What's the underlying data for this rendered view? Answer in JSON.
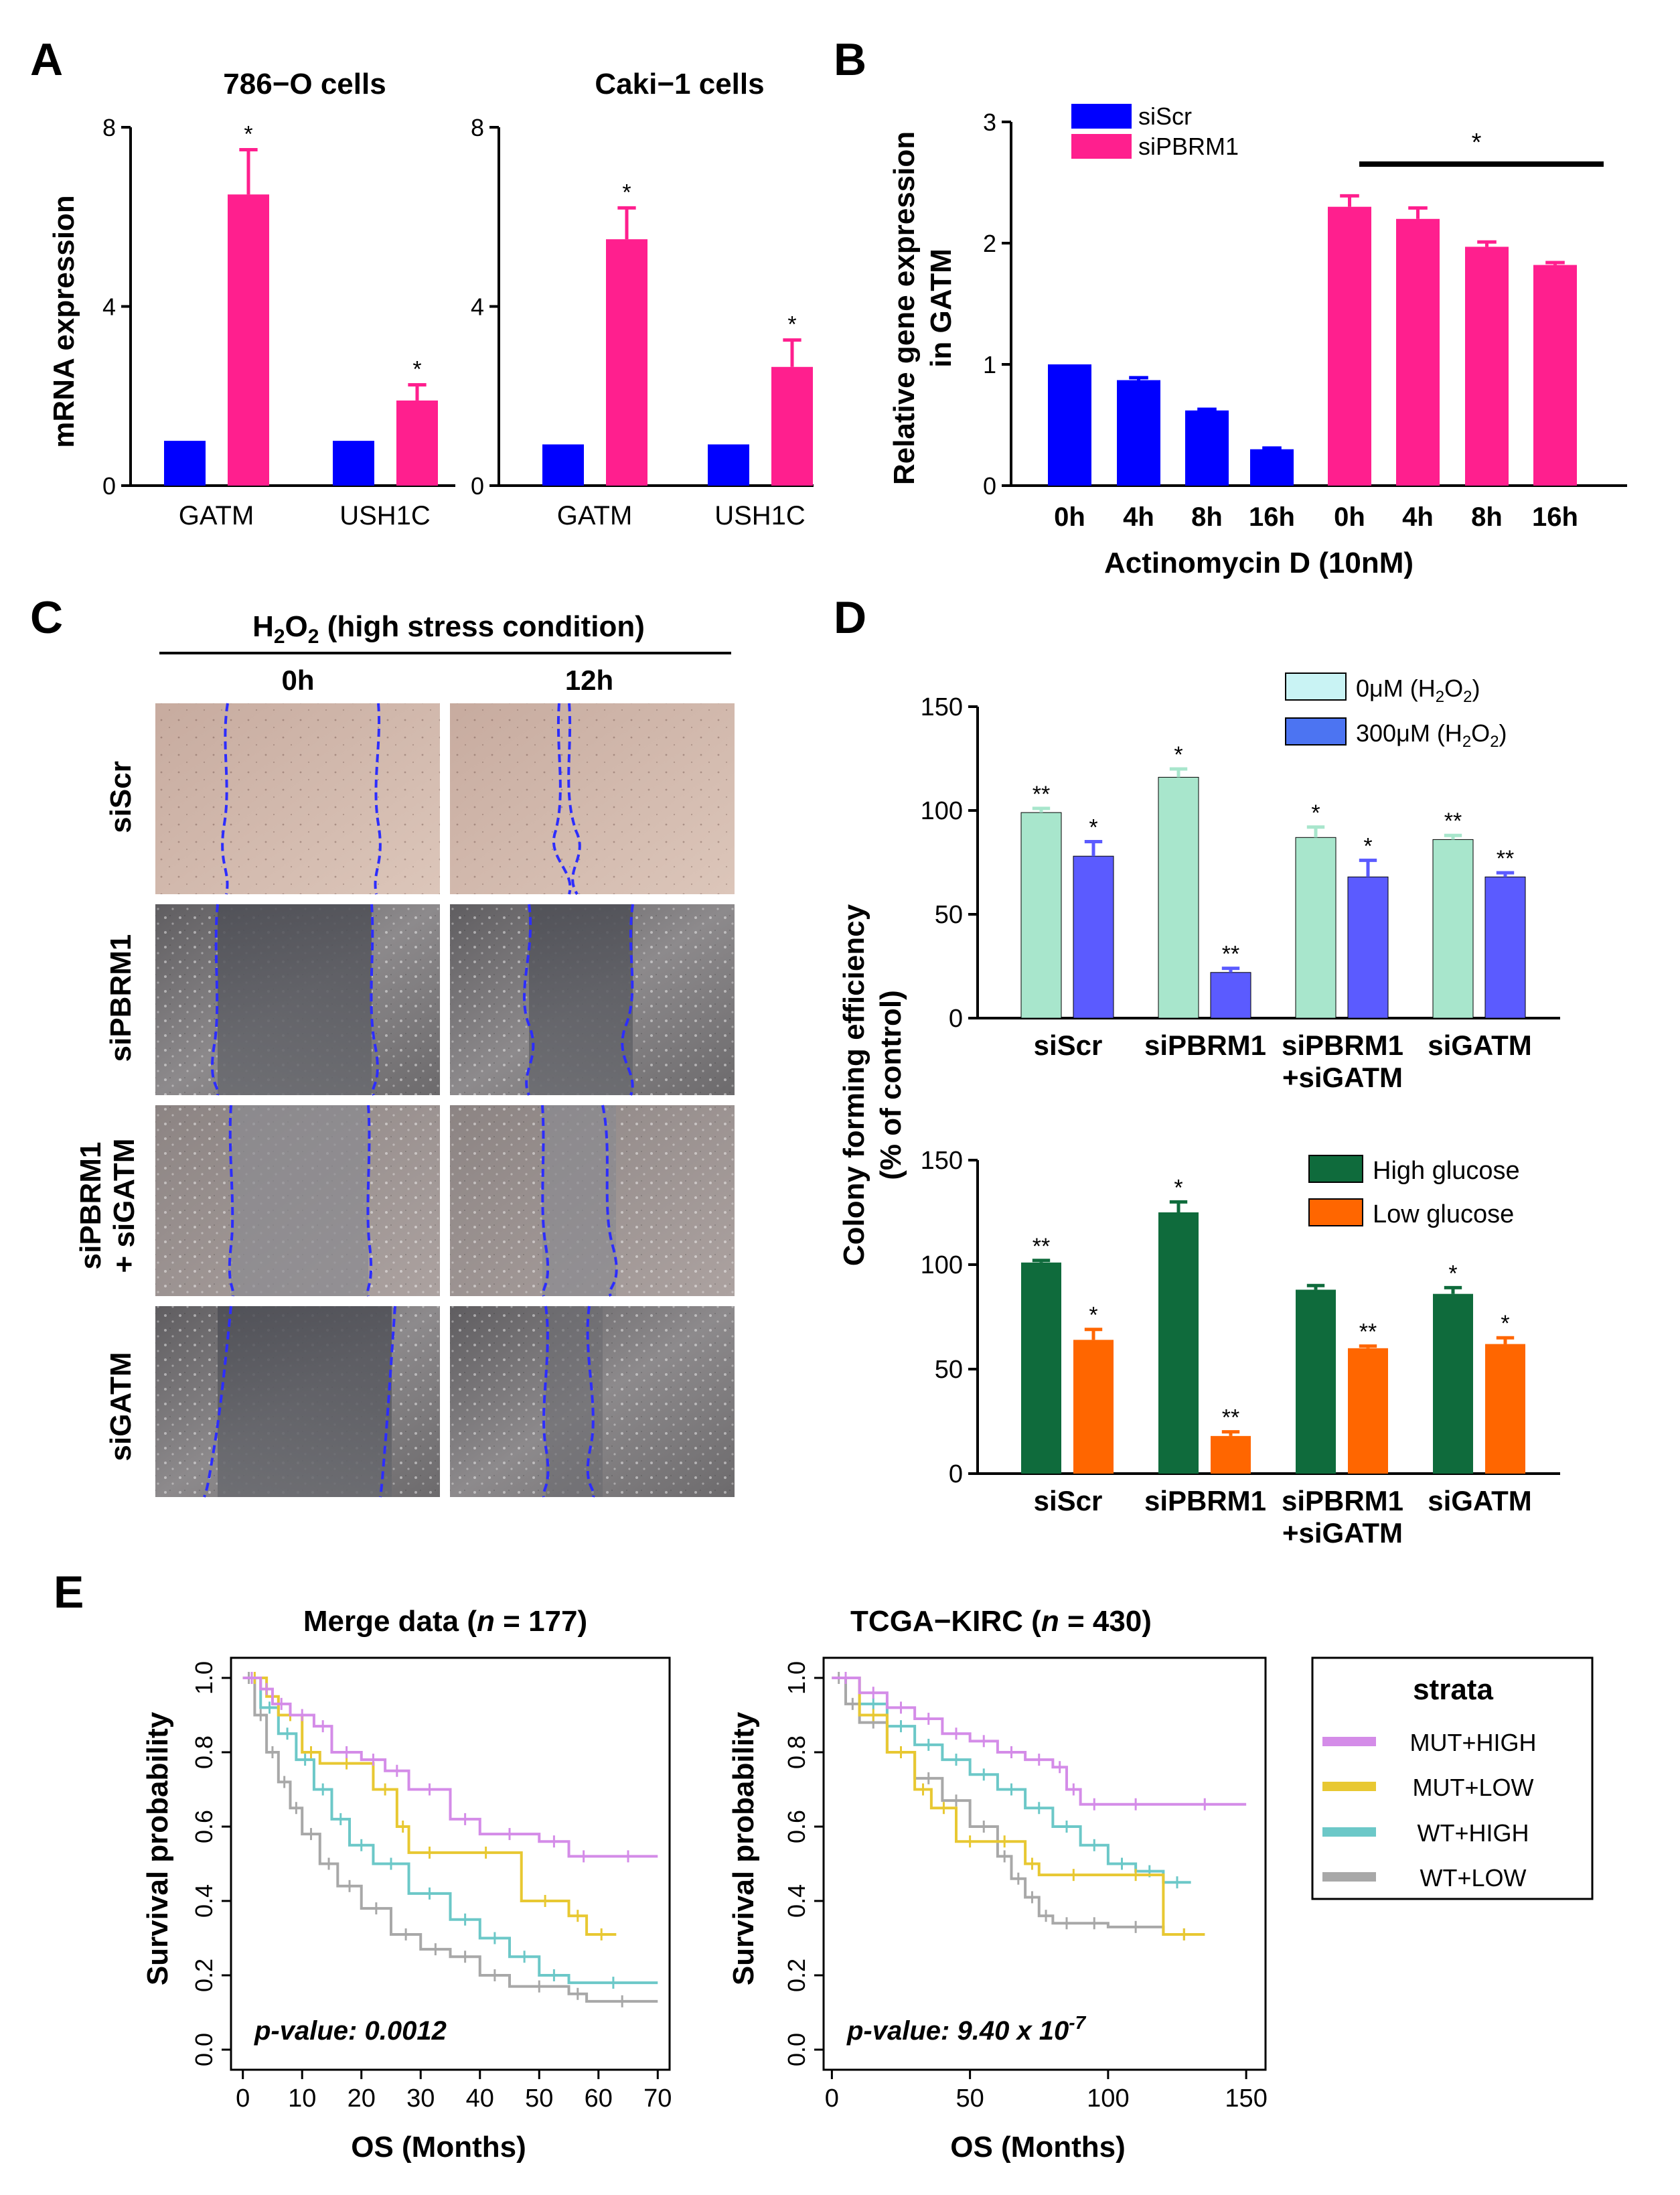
{
  "panel_labels": {
    "a": "A",
    "b": "B",
    "c": "C",
    "d": "D",
    "e": "E"
  },
  "colors": {
    "blue": "#0000ff",
    "pink": "#ff1f8e",
    "mint": "#a8e6cc",
    "periwinkle": "#5b5bff",
    "green": "#0f6b3c",
    "orange": "#ff6600",
    "mut_high": "#d48ce8",
    "mut_low": "#e8c832",
    "wt_high": "#6cc8c8",
    "wt_low": "#a8a8a8"
  },
  "panel_a": {
    "ylabel": "mRNA expression",
    "charts": [
      {
        "title": "786−O cells",
        "categories": [
          "GATM",
          "USH1C"
        ],
        "ylim": [
          0,
          8
        ],
        "yticks": [
          "0",
          "4",
          "8"
        ],
        "series": [
          {
            "name": "siScr",
            "values": [
              1.0,
              1.0
            ],
            "err": [
              0,
              0
            ]
          },
          {
            "name": "siPBRM1",
            "values": [
              6.5,
              1.9
            ],
            "err": [
              1.0,
              0.35
            ]
          }
        ],
        "sig": [
          "*",
          "*"
        ]
      },
      {
        "title": "Caki−1 cells",
        "categories": [
          "GATM",
          "USH1C"
        ],
        "ylim": [
          0,
          8
        ],
        "yticks": [
          "0",
          "4",
          "8"
        ],
        "series": [
          {
            "name": "siScr",
            "values": [
              0.92,
              0.92
            ],
            "err": [
              0,
              0
            ]
          },
          {
            "name": "siPBRM1",
            "values": [
              5.5,
              2.65
            ],
            "err": [
              0.7,
              0.6
            ]
          }
        ],
        "sig": [
          "*",
          "*"
        ]
      }
    ]
  },
  "panel_b": {
    "ylabel1": "Relative gene expression",
    "ylabel2": "in GATM",
    "xlabel": "Actinomycin  D (10nM)",
    "categories": [
      "0h",
      "4h",
      "8h",
      "16h"
    ],
    "yticks": [
      "0",
      "1",
      "2",
      "3"
    ],
    "ylim": [
      0,
      3
    ],
    "legend": [
      "siScr",
      "siPBRM1"
    ],
    "series": [
      {
        "name": "siScr",
        "values": [
          1.0,
          0.87,
          0.62,
          0.3
        ],
        "err": [
          0.0,
          0.02,
          0.01,
          0.01
        ]
      },
      {
        "name": "siPBRM1",
        "values": [
          2.3,
          2.2,
          1.97,
          1.82
        ],
        "err": [
          0.09,
          0.09,
          0.04,
          0.02
        ]
      }
    ],
    "sig": "*"
  },
  "panel_c": {
    "title_pre": "H",
    "title_sub": "2",
    "title_mid": "O",
    "title_sub2": "2",
    "title_post": " (high stress condition)",
    "columns": [
      "0h",
      "12h"
    ],
    "rows": [
      "siScr",
      "siPBRM1",
      "siPBRM1",
      "+ siGATM",
      "siGATM"
    ]
  },
  "panel_d": {
    "ylabel1": "Colony forming efficiency",
    "ylabel2": "(% of control)",
    "xtick_line2": "+siGATM",
    "charts": [
      {
        "categories": [
          "siScr",
          "siPBRM1",
          "siPBRM1",
          "siGATM"
        ],
        "yticks": [
          "0",
          "50",
          "100",
          "150"
        ],
        "ylim": [
          0,
          150
        ],
        "legend": [
          {
            "pre": "0",
            "mu": "μ",
            "post": "M (H",
            "s1": "2",
            "m": "O",
            "s2": "2",
            "end": ")"
          },
          {
            "pre": "300",
            "mu": "μ",
            "post": "M (H",
            "s1": "2",
            "m": "O",
            "s2": "2",
            "end": ")"
          }
        ],
        "series": [
          {
            "name": "0μM (H2O2)",
            "values": [
              99,
              116,
              87,
              86
            ],
            "err": [
              2,
              4,
              5,
              2
            ]
          },
          {
            "name": "300μM (H2O2)",
            "values": [
              78,
              22,
              68,
              68
            ],
            "err": [
              7,
              2,
              8,
              2
            ]
          }
        ],
        "sig": [
          [
            "**",
            "*"
          ],
          [
            "*",
            "**"
          ],
          [
            "*",
            "*"
          ],
          [
            "**",
            "**"
          ]
        ]
      },
      {
        "categories": [
          "siScr",
          "siPBRM1",
          "siPBRM1",
          "siGATM"
        ],
        "yticks": [
          "0",
          "50",
          "100",
          "150"
        ],
        "ylim": [
          0,
          150
        ],
        "legend": [
          "High  glucose",
          "Low glucose"
        ],
        "series": [
          {
            "name": "High glucose",
            "values": [
              101,
              125,
              88,
              86
            ],
            "err": [
              1,
              5,
              2,
              3
            ]
          },
          {
            "name": "Low glucose",
            "values": [
              64,
              18,
              60,
              62
            ],
            "err": [
              5,
              2,
              1,
              3
            ]
          }
        ],
        "sig": [
          [
            "**",
            "*"
          ],
          [
            "*",
            "**"
          ],
          [
            "",
            "**"
          ],
          [
            "*",
            "*"
          ]
        ]
      }
    ]
  },
  "panel_e": {
    "ylabel": "Survival probability",
    "xlabel": "OS (Months)",
    "legend_title": "strata",
    "legend": [
      "MUT+HIGH",
      "MUT+LOW",
      "WT+HIGH",
      "WT+LOW"
    ],
    "yticks": [
      "0.0",
      "0.2",
      "0.4",
      "0.6",
      "0.8",
      "1.0"
    ],
    "charts": [
      {
        "title_pre": "Merge data (",
        "title_n": "n",
        "title_post": " = 177)",
        "xticks": [
          "0",
          "10",
          "20",
          "30",
          "40",
          "50",
          "60",
          "70"
        ],
        "xlim": [
          -2,
          72
        ],
        "pvalue": "p-value:  0.0012",
        "series": [
          {
            "name": "MUT+HIGH",
            "x": [
              0,
              3,
              5,
              8,
              12,
              15,
              20,
              24,
              28,
              35,
              40,
              50,
              55,
              60,
              70
            ],
            "y": [
              1.0,
              0.97,
              0.93,
              0.9,
              0.87,
              0.8,
              0.78,
              0.75,
              0.7,
              0.62,
              0.58,
              0.56,
              0.52,
              0.52,
              0.52
            ]
          },
          {
            "name": "MUT+LOW",
            "x": [
              0,
              4,
              6,
              10,
              13,
              22,
              26,
              28,
              35,
              47,
              55,
              58,
              63
            ],
            "y": [
              1.0,
              0.95,
              0.9,
              0.8,
              0.77,
              0.7,
              0.6,
              0.53,
              0.53,
              0.4,
              0.36,
              0.31,
              0.31
            ]
          },
          {
            "name": "WT+HIGH",
            "x": [
              0,
              3,
              6,
              9,
              12,
              15,
              18,
              22,
              28,
              35,
              40,
              45,
              50,
              55,
              70
            ],
            "y": [
              1.0,
              0.92,
              0.85,
              0.78,
              0.7,
              0.62,
              0.55,
              0.5,
              0.42,
              0.35,
              0.3,
              0.25,
              0.2,
              0.18,
              0.18
            ]
          },
          {
            "name": "WT+LOW",
            "x": [
              0,
              2,
              4,
              6,
              8,
              10,
              13,
              16,
              20,
              25,
              30,
              35,
              40,
              45,
              55,
              58,
              70
            ],
            "y": [
              1.0,
              0.9,
              0.8,
              0.72,
              0.65,
              0.58,
              0.5,
              0.44,
              0.38,
              0.31,
              0.27,
              0.25,
              0.2,
              0.17,
              0.15,
              0.13,
              0.13
            ]
          }
        ]
      },
      {
        "title_pre": "TCGA−KIRC (",
        "title_n": "n",
        "title_post": " = 430)",
        "xticks": [
          "0",
          "50",
          "100",
          "150"
        ],
        "xlim": [
          -3,
          157
        ],
        "pvalue_pre": "p-value:  9.40  x 10",
        "pvalue_exp": "-7",
        "series": [
          {
            "name": "MUT+HIGH",
            "x": [
              0,
              10,
              20,
              30,
              40,
              50,
              60,
              70,
              80,
              85,
              90,
              100,
              120,
              150
            ],
            "y": [
              1.0,
              0.96,
              0.92,
              0.89,
              0.85,
              0.83,
              0.8,
              0.78,
              0.76,
              0.7,
              0.66,
              0.66,
              0.66,
              0.66
            ]
          },
          {
            "name": "MUT+LOW",
            "x": [
              0,
              10,
              20,
              30,
              36,
              45,
              55,
              70,
              75,
              100,
              120,
              135
            ],
            "y": [
              1.0,
              0.9,
              0.8,
              0.7,
              0.65,
              0.56,
              0.56,
              0.5,
              0.47,
              0.47,
              0.31,
              0.31
            ]
          },
          {
            "name": "WT+HIGH",
            "x": [
              0,
              10,
              20,
              30,
              40,
              50,
              60,
              70,
              80,
              90,
              100,
              110,
              120,
              130
            ],
            "y": [
              1.0,
              0.93,
              0.87,
              0.82,
              0.78,
              0.74,
              0.7,
              0.65,
              0.6,
              0.55,
              0.5,
              0.48,
              0.45,
              0.45
            ]
          },
          {
            "name": "WT+LOW",
            "x": [
              0,
              5,
              10,
              20,
              30,
              40,
              50,
              60,
              65,
              70,
              75,
              80,
              90,
              100,
              120,
              135
            ],
            "y": [
              1.0,
              0.93,
              0.88,
              0.8,
              0.73,
              0.67,
              0.6,
              0.52,
              0.46,
              0.41,
              0.36,
              0.34,
              0.34,
              0.33,
              0.31,
              0.31
            ]
          }
        ]
      }
    ]
  }
}
